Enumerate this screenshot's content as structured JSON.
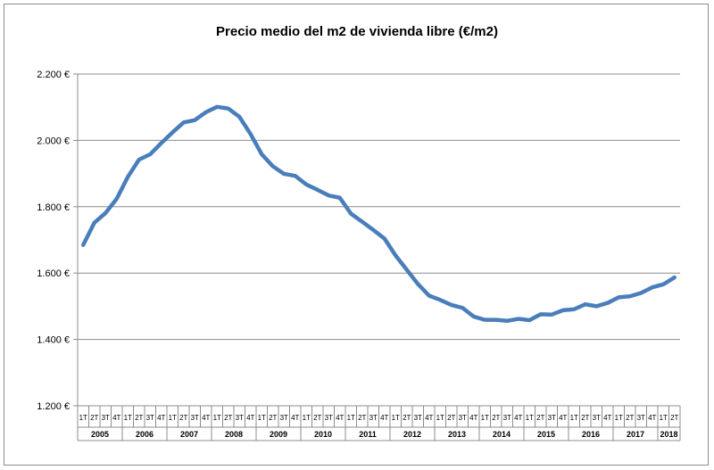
{
  "chart_data": {
    "type": "line",
    "title": "Precio medio del m2 de vivienda libre (€/m2)",
    "xlabel": "",
    "ylabel": "",
    "ylim": [
      1200,
      2200
    ],
    "yticks": [
      1200,
      1400,
      1600,
      1800,
      2000,
      2200
    ],
    "ytick_labels": [
      "1.200 €",
      "1.400 €",
      "1.600 €",
      "1.800 €",
      "2.000 €",
      "2.200 €"
    ],
    "grid": true,
    "legend": "none",
    "line_color": "#4a7ebb",
    "quarter_labels": [
      "1T",
      "2T",
      "3T",
      "4T"
    ],
    "years": [
      "2005",
      "2006",
      "2007",
      "2008",
      "2009",
      "2010",
      "2011",
      "2012",
      "2013",
      "2014",
      "2015",
      "2016",
      "2017",
      "2018"
    ],
    "quarters_per_year": [
      4,
      4,
      4,
      4,
      4,
      4,
      4,
      4,
      4,
      4,
      4,
      4,
      4,
      2
    ],
    "series": [
      {
        "values": [
          1685,
          1752,
          1781,
          1824,
          1890,
          1942,
          1958,
          1992,
          2024,
          2054,
          2061,
          2085,
          2101,
          2096,
          2071,
          2019,
          1958,
          1922,
          1899,
          1893,
          1867,
          1851,
          1834,
          1827,
          1779,
          1755,
          1730,
          1704,
          1653,
          1610,
          1567,
          1532,
          1519,
          1504,
          1495,
          1469,
          1459,
          1459,
          1456,
          1462,
          1458,
          1476,
          1475,
          1488,
          1491,
          1506,
          1500,
          1510,
          1527,
          1530,
          1540,
          1557,
          1566,
          1587
        ]
      }
    ]
  }
}
